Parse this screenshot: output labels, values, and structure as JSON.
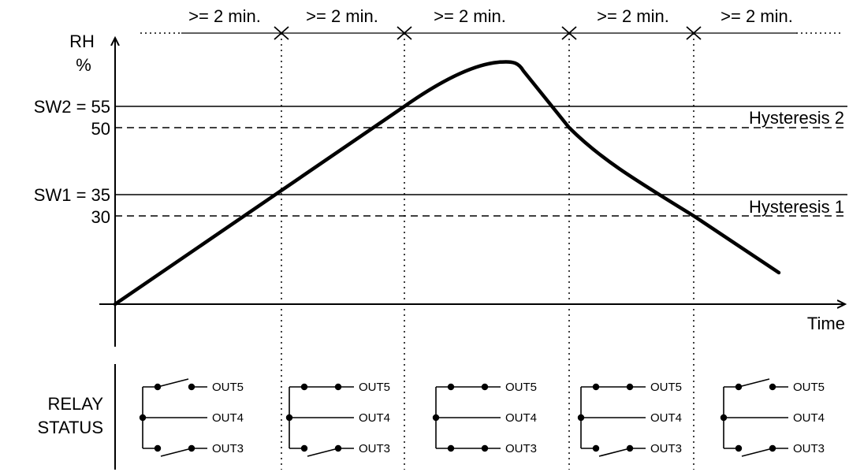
{
  "y_axis": {
    "label_line1": "RH",
    "label_line2": "%"
  },
  "x_axis": {
    "label": "Time"
  },
  "thresholds": {
    "sw2": {
      "label": "SW2 = 55",
      "value": 55
    },
    "sw2_off": {
      "label": "50",
      "value": 50
    },
    "sw1": {
      "label": "SW1 = 35",
      "value": 35
    },
    "sw1_off": {
      "label": "30",
      "value": 30
    }
  },
  "hysteresis": {
    "h2": "Hysteresis 2",
    "h1": "Hysteresis 1"
  },
  "interval_labels": [
    ">= 2 min.",
    ">= 2 min.",
    ">= 2 min.",
    ">= 2 min.",
    ">= 2 min."
  ],
  "relay_status": {
    "line1": "RELAY",
    "line2": "STATUS"
  },
  "relay_groups": [
    {
      "out5": "OUT5",
      "out4": "OUT4",
      "out3": "OUT3",
      "out5_closed": false,
      "out3_closed": false
    },
    {
      "out5": "OUT5",
      "out4": "OUT4",
      "out3": "OUT3",
      "out5_closed": true,
      "out3_closed": false
    },
    {
      "out5": "OUT5",
      "out4": "OUT4",
      "out3": "OUT3",
      "out5_closed": true,
      "out3_closed": true
    },
    {
      "out5": "OUT5",
      "out4": "OUT4",
      "out3": "OUT3",
      "out5_closed": true,
      "out3_closed": false
    },
    {
      "out5": "OUT5",
      "out4": "OUT4",
      "out3": "OUT3",
      "out5_closed": false,
      "out3_closed": false
    }
  ]
}
